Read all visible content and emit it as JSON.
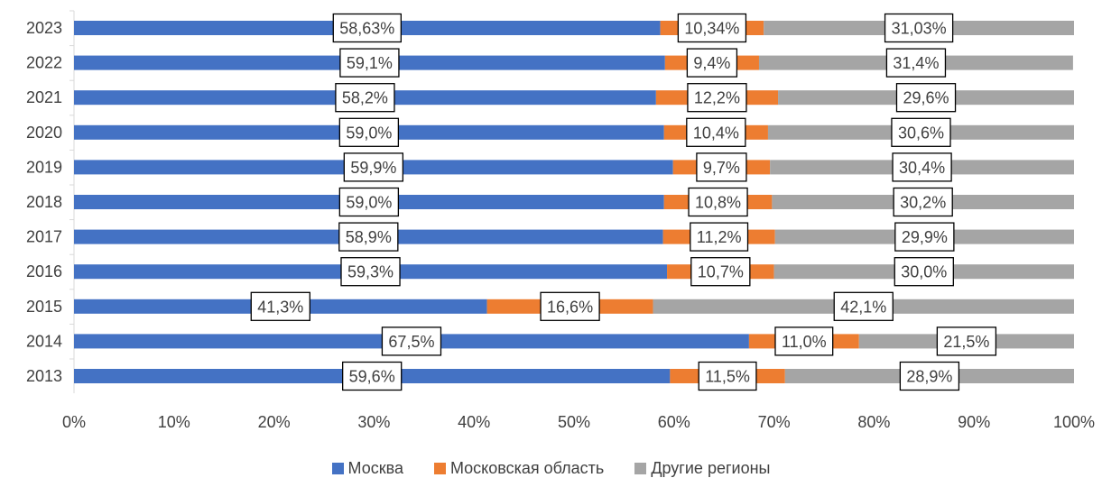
{
  "chart_data": {
    "type": "bar",
    "orientation": "horizontal",
    "stacked": "percent",
    "categories": [
      "2023",
      "2022",
      "2021",
      "2020",
      "2019",
      "2018",
      "2017",
      "2016",
      "2015",
      "2014",
      "2013"
    ],
    "series": [
      {
        "name": "Москва",
        "color": "#4472C4",
        "values": [
          58.63,
          59.1,
          58.2,
          59.0,
          59.9,
          59.0,
          58.9,
          59.3,
          41.3,
          67.5,
          59.6
        ],
        "labels": [
          "58,63%",
          "59,1%",
          "58,2%",
          "59,0%",
          "59,9%",
          "59,0%",
          "58,9%",
          "59,3%",
          "41,3%",
          "67,5%",
          "59,6%"
        ]
      },
      {
        "name": "Московская область",
        "color": "#ED7D31",
        "values": [
          10.34,
          9.4,
          12.2,
          10.4,
          9.7,
          10.8,
          11.2,
          10.7,
          16.6,
          11.0,
          11.5
        ],
        "labels": [
          "10,34%",
          "9,4%",
          "12,2%",
          "10,4%",
          "9,7%",
          "10,8%",
          "11,2%",
          "10,7%",
          "16,6%",
          "11,0%",
          "11,5%"
        ]
      },
      {
        "name": "Другие регионы",
        "color": "#A5A5A5",
        "values": [
          31.03,
          31.4,
          29.6,
          30.6,
          30.4,
          30.2,
          29.9,
          30.0,
          42.1,
          21.5,
          28.9
        ],
        "labels": [
          "31,03%",
          "31,4%",
          "29,6%",
          "30,6%",
          "30,4%",
          "30,2%",
          "29,9%",
          "30,0%",
          "42,1%",
          "21,5%",
          "28,9%"
        ]
      }
    ],
    "xlim": [
      0,
      100
    ],
    "x_ticks": [
      "0%",
      "10%",
      "20%",
      "30%",
      "40%",
      "50%",
      "60%",
      "70%",
      "80%",
      "90%",
      "100%"
    ],
    "grid": false,
    "legend_position": "bottom"
  }
}
